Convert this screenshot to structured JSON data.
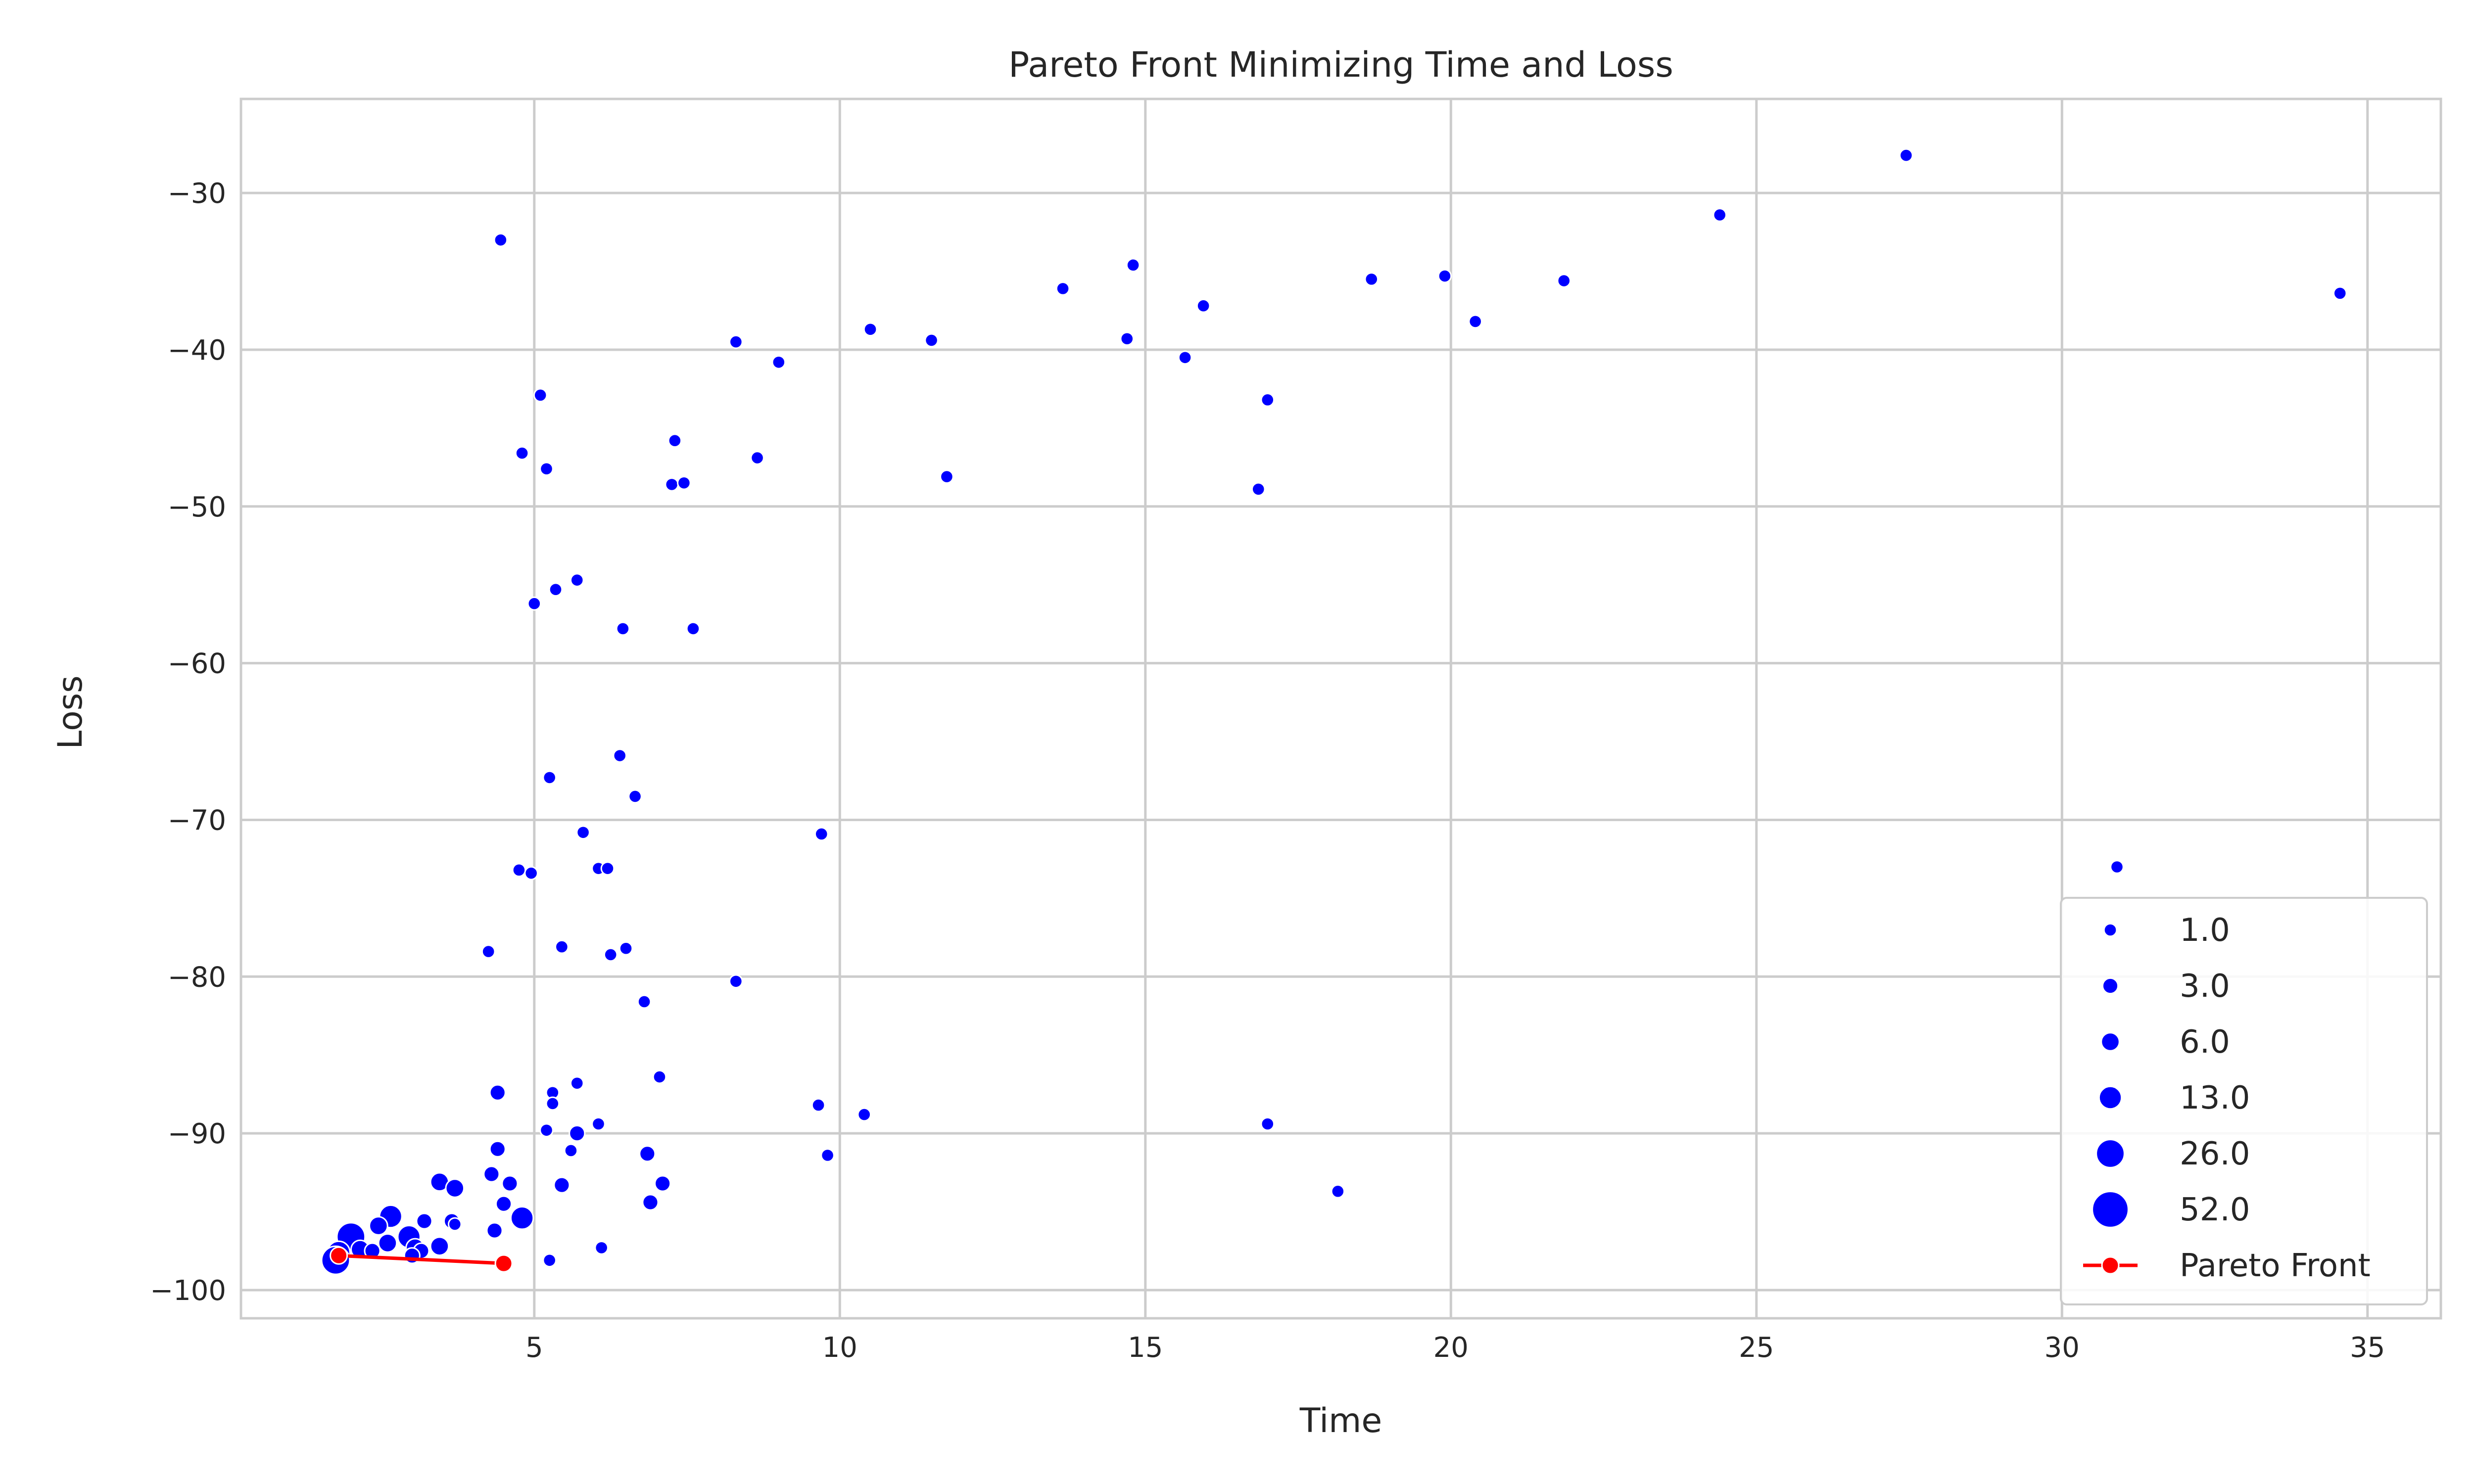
{
  "chart_data": {
    "type": "scatter",
    "title": "Pareto Front Minimizing Time and Loss",
    "xlabel": "Time",
    "ylabel": "Loss",
    "xlim": [
      0.2,
      36.2
    ],
    "ylim": [
      -101.8,
      -24.0
    ],
    "xticks": [
      5,
      10,
      15,
      20,
      25,
      30,
      35
    ],
    "yticks": [
      -30,
      -40,
      -50,
      -60,
      -70,
      -80,
      -90,
      -100
    ],
    "grid": true,
    "legend_position": "lower right",
    "colors": {
      "points": "#0000ff",
      "pareto": "#ff0000",
      "grid": "#cccccc",
      "frame": "#cccccc"
    },
    "size_legend": [
      {
        "label": "1.0",
        "size": 1
      },
      {
        "label": "3.0",
        "size": 3
      },
      {
        "label": "6.0",
        "size": 6
      },
      {
        "label": "13.0",
        "size": 13
      },
      {
        "label": "26.0",
        "size": 26
      },
      {
        "label": "52.0",
        "size": 52
      }
    ],
    "series": [
      {
        "name": "",
        "kind": "scatter",
        "points": [
          {
            "x": 4.45,
            "y": -33.0,
            "s": 1
          },
          {
            "x": 27.45,
            "y": -27.6,
            "s": 1
          },
          {
            "x": 24.4,
            "y": -31.4,
            "s": 1
          },
          {
            "x": 34.55,
            "y": -36.4,
            "s": 1
          },
          {
            "x": 30.9,
            "y": -73.0,
            "s": 1
          },
          {
            "x": 13.65,
            "y": -36.1,
            "s": 1
          },
          {
            "x": 14.8,
            "y": -34.6,
            "s": 1
          },
          {
            "x": 15.95,
            "y": -37.2,
            "s": 1
          },
          {
            "x": 18.7,
            "y": -35.5,
            "s": 1
          },
          {
            "x": 19.9,
            "y": -35.3,
            "s": 1
          },
          {
            "x": 21.85,
            "y": -35.6,
            "s": 1
          },
          {
            "x": 20.4,
            "y": -38.2,
            "s": 1
          },
          {
            "x": 14.7,
            "y": -39.3,
            "s": 1
          },
          {
            "x": 15.65,
            "y": -40.5,
            "s": 1
          },
          {
            "x": 17.0,
            "y": -43.2,
            "s": 1
          },
          {
            "x": 16.85,
            "y": -48.9,
            "s": 1
          },
          {
            "x": 8.3,
            "y": -39.5,
            "s": 1
          },
          {
            "x": 10.5,
            "y": -38.7,
            "s": 1
          },
          {
            "x": 11.5,
            "y": -39.4,
            "s": 1
          },
          {
            "x": 9.0,
            "y": -40.8,
            "s": 1
          },
          {
            "x": 11.75,
            "y": -48.1,
            "s": 1
          },
          {
            "x": 5.1,
            "y": -42.9,
            "s": 1
          },
          {
            "x": 4.8,
            "y": -46.6,
            "s": 1
          },
          {
            "x": 5.2,
            "y": -47.6,
            "s": 1
          },
          {
            "x": 7.3,
            "y": -45.8,
            "s": 1
          },
          {
            "x": 8.65,
            "y": -46.9,
            "s": 1
          },
          {
            "x": 7.25,
            "y": -48.6,
            "s": 1
          },
          {
            "x": 7.45,
            "y": -48.5,
            "s": 1
          },
          {
            "x": 5.7,
            "y": -54.7,
            "s": 1
          },
          {
            "x": 5.35,
            "y": -55.3,
            "s": 1
          },
          {
            "x": 5.0,
            "y": -56.2,
            "s": 1
          },
          {
            "x": 6.45,
            "y": -57.8,
            "s": 1
          },
          {
            "x": 7.6,
            "y": -57.8,
            "s": 1
          },
          {
            "x": 6.4,
            "y": -65.9,
            "s": 1
          },
          {
            "x": 5.25,
            "y": -67.3,
            "s": 1
          },
          {
            "x": 6.65,
            "y": -68.5,
            "s": 1
          },
          {
            "x": 9.7,
            "y": -70.9,
            "s": 1
          },
          {
            "x": 5.8,
            "y": -70.8,
            "s": 1
          },
          {
            "x": 4.75,
            "y": -73.2,
            "s": 1
          },
          {
            "x": 4.95,
            "y": -73.4,
            "s": 1
          },
          {
            "x": 6.05,
            "y": -73.1,
            "s": 1
          },
          {
            "x": 6.2,
            "y": -73.1,
            "s": 1
          },
          {
            "x": 4.25,
            "y": -78.4,
            "s": 1
          },
          {
            "x": 5.45,
            "y": -78.1,
            "s": 1
          },
          {
            "x": 6.5,
            "y": -78.2,
            "s": 1
          },
          {
            "x": 6.25,
            "y": -78.6,
            "s": 1
          },
          {
            "x": 8.3,
            "y": -80.3,
            "s": 1
          },
          {
            "x": 6.8,
            "y": -81.6,
            "s": 1
          },
          {
            "x": 7.05,
            "y": -86.4,
            "s": 1
          },
          {
            "x": 5.7,
            "y": -86.8,
            "s": 1
          },
          {
            "x": 4.4,
            "y": -87.4,
            "s": 3
          },
          {
            "x": 5.3,
            "y": -87.4,
            "s": 1
          },
          {
            "x": 5.3,
            "y": -88.1,
            "s": 1
          },
          {
            "x": 9.65,
            "y": -88.2,
            "s": 1
          },
          {
            "x": 10.4,
            "y": -88.8,
            "s": 1
          },
          {
            "x": 17.0,
            "y": -89.4,
            "s": 1
          },
          {
            "x": 18.15,
            "y": -93.7,
            "s": 1
          },
          {
            "x": 5.2,
            "y": -89.8,
            "s": 1
          },
          {
            "x": 6.05,
            "y": -89.4,
            "s": 1
          },
          {
            "x": 5.7,
            "y": -90.0,
            "s": 3
          },
          {
            "x": 4.4,
            "y": -91.0,
            "s": 3
          },
          {
            "x": 5.6,
            "y": -91.1,
            "s": 1
          },
          {
            "x": 6.85,
            "y": -91.3,
            "s": 3
          },
          {
            "x": 9.8,
            "y": -91.4,
            "s": 1
          },
          {
            "x": 4.3,
            "y": -92.6,
            "s": 3
          },
          {
            "x": 4.6,
            "y": -93.2,
            "s": 3
          },
          {
            "x": 5.45,
            "y": -93.3,
            "s": 3
          },
          {
            "x": 7.1,
            "y": -93.2,
            "s": 3
          },
          {
            "x": 3.45,
            "y": -93.1,
            "s": 6
          },
          {
            "x": 3.7,
            "y": -93.5,
            "s": 6
          },
          {
            "x": 4.5,
            "y": -94.5,
            "s": 3
          },
          {
            "x": 6.9,
            "y": -94.4,
            "s": 3
          },
          {
            "x": 4.8,
            "y": -95.4,
            "s": 13
          },
          {
            "x": 3.65,
            "y": -95.6,
            "s": 3
          },
          {
            "x": 3.2,
            "y": -95.6,
            "s": 3
          },
          {
            "x": 3.7,
            "y": -95.8,
            "s": 1
          },
          {
            "x": 4.35,
            "y": -96.2,
            "s": 3
          },
          {
            "x": 2.65,
            "y": -95.3,
            "s": 13
          },
          {
            "x": 2.45,
            "y": -95.9,
            "s": 6
          },
          {
            "x": 2.0,
            "y": -96.6,
            "s": 26
          },
          {
            "x": 2.95,
            "y": -96.6,
            "s": 13
          },
          {
            "x": 2.6,
            "y": -97.0,
            "s": 6
          },
          {
            "x": 2.15,
            "y": -97.4,
            "s": 6
          },
          {
            "x": 2.35,
            "y": -97.5,
            "s": 3
          },
          {
            "x": 3.05,
            "y": -97.3,
            "s": 6
          },
          {
            "x": 3.15,
            "y": -97.5,
            "s": 3
          },
          {
            "x": 3.45,
            "y": -97.2,
            "s": 6
          },
          {
            "x": 3.0,
            "y": -97.8,
            "s": 3
          },
          {
            "x": 1.8,
            "y": -97.6,
            "s": 13
          },
          {
            "x": 1.75,
            "y": -98.1,
            "s": 26
          },
          {
            "x": 6.1,
            "y": -97.3,
            "s": 1
          },
          {
            "x": 5.25,
            "y": -98.1,
            "s": 1
          }
        ]
      },
      {
        "name": "Pareto Front",
        "kind": "line",
        "points": [
          {
            "x": 1.8,
            "y": -97.8
          },
          {
            "x": 4.5,
            "y": -98.3
          }
        ]
      }
    ]
  }
}
